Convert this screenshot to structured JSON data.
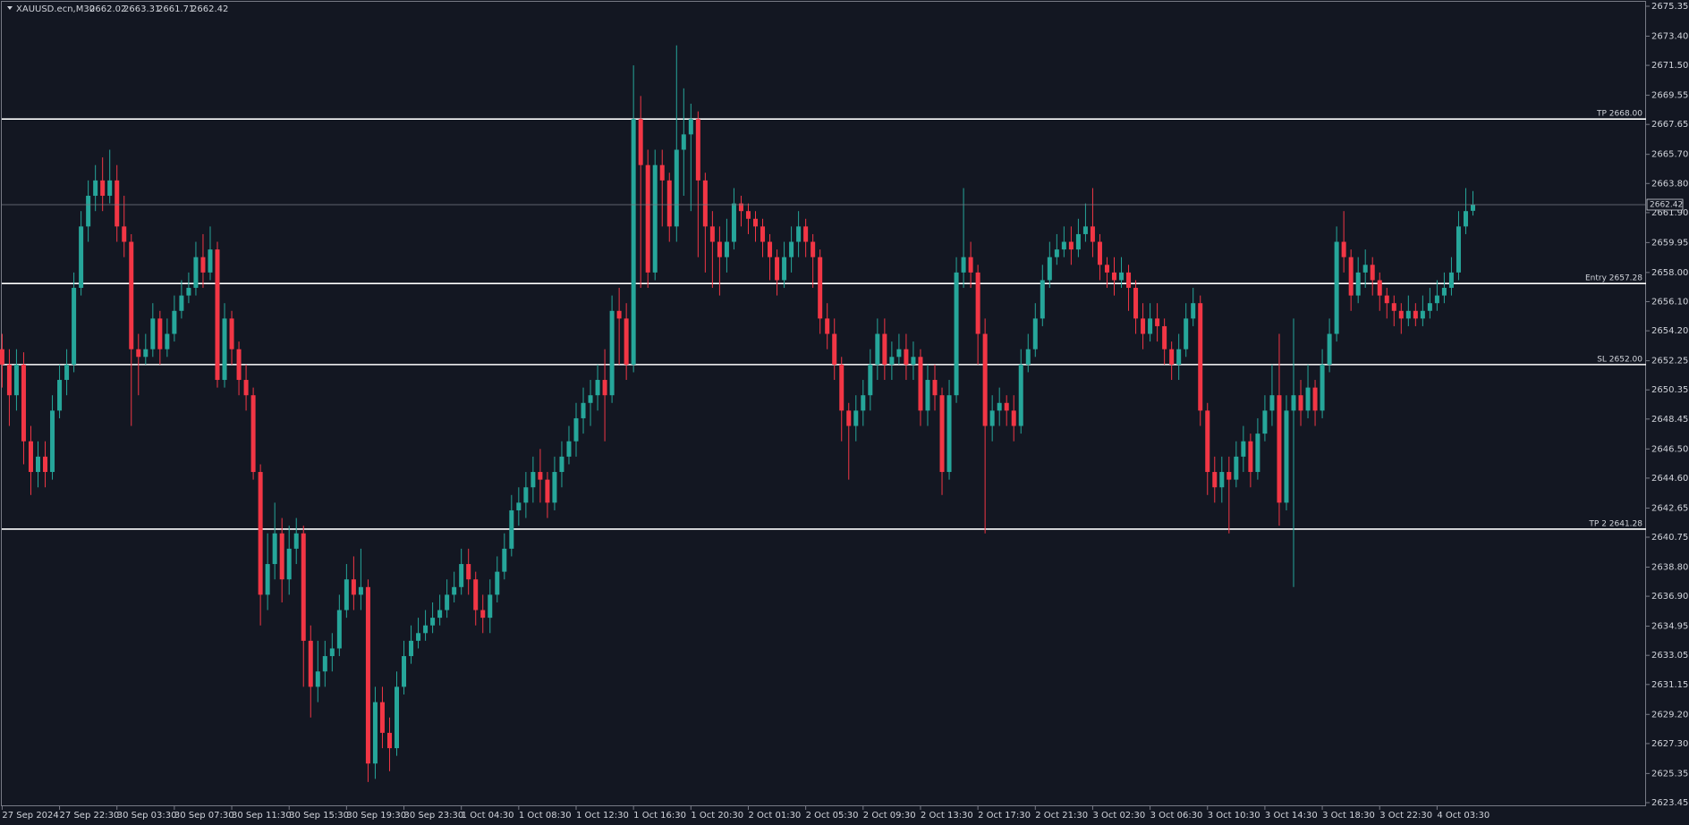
{
  "chart_data": {
    "type": "candlestick",
    "title": "XAUUSD.ecn,M30",
    "bull_color": "#26a69a",
    "bear_color": "#f23645",
    "ylim": [
      2623.45,
      2675.35
    ],
    "yticks": [
      2623.45,
      2625.35,
      {
        "value": 2627.3,
        "label": "2627.30"
      },
      {
        "value": 2629.2,
        "label": "2629.20"
      },
      2631.15,
      2633.05,
      2634.95,
      {
        "value": 2636.9,
        "label": "2636.90"
      },
      {
        "value": 2638.8,
        "label": "2638.80"
      },
      2640.75,
      2642.65,
      {
        "value": 2644.6,
        "label": "2644.60"
      },
      {
        "value": 2646.5,
        "label": "2646.50"
      },
      2648.45,
      2650.35,
      2652.25,
      {
        "value": 2654.2,
        "label": "2654.20"
      },
      {
        "value": 2656.1,
        "label": "2656.10"
      },
      {
        "value": 2658,
        "label": "2658.00"
      },
      2659.95,
      {
        "value": 2661.9,
        "label": "2661.90"
      },
      {
        "value": 2663.8,
        "label": "2663.80"
      },
      {
        "value": 2665.7,
        "label": "2665.70"
      },
      2667.65,
      2669.55,
      {
        "value": 2671.5,
        "label": "2671.50"
      },
      {
        "value": 2673.4,
        "label": "2673.40"
      },
      2675.35
    ],
    "xticks": [
      {
        "value": 0,
        "label": "27 Sep 2024"
      },
      {
        "value": 8,
        "label": "27 Sep 22:30"
      },
      {
        "value": 16,
        "label": "30 Sep 03:30"
      },
      {
        "value": 24,
        "label": "30 Sep 07:30"
      },
      {
        "value": 32,
        "label": "30 Sep 11:30"
      },
      {
        "value": 40,
        "label": "30 Sep 15:30"
      },
      {
        "value": 48,
        "label": "30 Sep 19:30"
      },
      {
        "value": 56,
        "label": "30 Sep 23:30"
      },
      {
        "value": 64,
        "label": "1 Oct 04:30"
      },
      {
        "value": 72,
        "label": "1 Oct 08:30"
      },
      {
        "value": 80,
        "label": "1 Oct 12:30"
      },
      {
        "value": 88,
        "label": "1 Oct 16:30"
      },
      {
        "value": 96,
        "label": "1 Oct 20:30"
      },
      {
        "value": 104,
        "label": "2 Oct 01:30"
      },
      {
        "value": 112,
        "label": "2 Oct 05:30"
      },
      {
        "value": 120,
        "label": "2 Oct 09:30"
      },
      {
        "value": 128,
        "label": "2 Oct 13:30"
      },
      {
        "value": 136,
        "label": "2 Oct 17:30"
      },
      {
        "value": 144,
        "label": "2 Oct 21:30"
      },
      {
        "value": 152,
        "label": "3 Oct 02:30"
      },
      {
        "value": 160,
        "label": "3 Oct 06:30"
      },
      {
        "value": 168,
        "label": "3 Oct 10:30"
      },
      {
        "value": 176,
        "label": "3 Oct 14:30"
      },
      {
        "value": 184,
        "label": "3 Oct 18:30"
      },
      {
        "value": 192,
        "label": "3 Oct 22:30"
      },
      {
        "value": 200,
        "label": "4 Oct 03:30"
      }
    ],
    "levels": [
      {
        "label": "TP 2668.00",
        "value": 2668
      },
      {
        "label": "Entry 2657.28",
        "value": 2657.28
      },
      {
        "label": "SL 2652.00",
        "value": 2652
      },
      {
        "label": "TP 2 2641.28",
        "value": 2641.28
      }
    ],
    "open": [
      2653,
      2652,
      2650,
      2652,
      2647,
      2645,
      2646,
      2645,
      2649,
      2651,
      2652,
      2657,
      2661,
      2663,
      2664,
      2663,
      2664,
      2661,
      2660,
      2653,
      2652.5,
      2653,
      2655,
      2653,
      2654,
      2655.5,
      2656.5,
      2657,
      2659,
      2658,
      2659.5,
      2651,
      2655,
      2653,
      2651,
      2650,
      2645,
      2637,
      2639,
      2641,
      2638,
      2640,
      2641,
      2634,
      2631,
      2632,
      2633,
      2633.5,
      2636,
      2638,
      2637,
      2637.5,
      2626,
      2630,
      2628,
      2627,
      2631,
      2633,
      2634,
      2634.5,
      2635,
      2635.5,
      2636,
      2637,
      2637.5,
      2639,
      2638,
      2636,
      2635.5,
      2637,
      2638.5,
      2640,
      2642.5,
      2643,
      2644,
      2645,
      2644.5,
      2643,
      2645,
      2646,
      2647,
      2648.5,
      2649.5,
      2650,
      2651,
      2650,
      2655.5,
      2655,
      2652,
      2668,
      2665,
      2658,
      2665,
      2664,
      2661,
      2666,
      2667,
      2668,
      2664,
      2661,
      2660,
      2659,
      2660,
      2662.5,
      2662,
      2661.5,
      2661,
      2660,
      2659,
      2657.5,
      2659,
      2660,
      2661,
      2660,
      2659,
      2655,
      2654,
      2652,
      2649,
      2648,
      2649,
      2650,
      2652,
      2654,
      2652,
      2652.5,
      2653,
      2652,
      2652.5,
      2649,
      2651,
      2650,
      2645,
      2650,
      2658,
      2659,
      2658,
      2654,
      2648,
      2649,
      2649.5,
      2649,
      2648,
      2652,
      2653,
      2655,
      2657.5,
      2659,
      2659.5,
      2660,
      2659.5,
      2660.5,
      2661,
      2660,
      2658.5,
      2658,
      2657.5,
      2658,
      2657,
      2655,
      2654,
      2655,
      2654.5,
      2653,
      2652,
      2653,
      2655,
      2656,
      2649,
      2645,
      2644,
      2645,
      2644.5,
      2646,
      2647,
      2645,
      2647.5,
      2649,
      2650,
      2643,
      2649,
      2650,
      2649,
      2650.5,
      2649,
      2652,
      2654,
      2660,
      2659,
      2656.5,
      2658,
      2658.5,
      2657.5,
      2656.5,
      2656,
      2655.5,
      2655,
      2655.5,
      2655,
      2655.5,
      2656,
      2656.5,
      2657,
      2658,
      2661,
      2662.02
    ],
    "high": [
      2654,
      2653,
      2653,
      2652.8,
      2648,
      2647,
      2647,
      2650,
      2652,
      2653,
      2658,
      2662,
      2664,
      2665,
      2665.5,
      2666,
      2665,
      2663,
      2660.5,
      2654,
      2654,
      2656,
      2655.5,
      2655,
      2656.5,
      2657.5,
      2658,
      2660,
      2660.5,
      2661,
      2660,
      2656,
      2655.5,
      2653.5,
      2652,
      2650.5,
      2645.5,
      2641,
      2643,
      2642,
      2641.5,
      2642,
      2641.5,
      2635,
      2634,
      2634,
      2634.5,
      2637,
      2639,
      2639.5,
      2640,
      2638,
      2631,
      2631,
      2629,
      2632,
      2634,
      2635,
      2635.5,
      2636,
      2636.5,
      2637,
      2638,
      2638.5,
      2640,
      2640,
      2638.5,
      2637,
      2638,
      2639.5,
      2641,
      2643.5,
      2644,
      2645,
      2646,
      2646.5,
      2645,
      2646,
      2647,
      2648,
      2649.5,
      2650.5,
      2651,
      2652,
      2653,
      2656.5,
      2657,
      2656,
      2671.5,
      2669.5,
      2666,
      2666,
      2666,
      2664.5,
      2672.8,
      2670,
      2669,
      2668.5,
      2664.5,
      2662,
      2661,
      2661.5,
      2663.5,
      2663,
      2662.5,
      2662,
      2661.5,
      2660.5,
      2659.5,
      2660,
      2661,
      2662,
      2661.5,
      2660.5,
      2659.5,
      2656,
      2655,
      2652.5,
      2649.5,
      2650,
      2651,
      2653,
      2655,
      2655,
      2653.5,
      2654,
      2654,
      2653.5,
      2653,
      2652,
      2652,
      2650.5,
      2651,
      2659,
      2663.5,
      2660,
      2658.5,
      2655,
      2650,
      2650.5,
      2650,
      2650,
      2653,
      2654,
      2656,
      2658.5,
      2660,
      2660.5,
      2661,
      2661,
      2661.5,
      2662.5,
      2663.5,
      2660.5,
      2659,
      2659,
      2659,
      2658.5,
      2657.5,
      2656,
      2656,
      2656,
      2655,
      2653.5,
      2654,
      2656,
      2657,
      2656.5,
      2649.5,
      2646,
      2646,
      2646,
      2647,
      2648,
      2647.5,
      2648.5,
      2650,
      2652,
      2654,
      2650,
      2655,
      2651,
      2652,
      2651,
      2653,
      2655,
      2661,
      2662,
      2659.5,
      2659,
      2659.5,
      2659,
      2658,
      2657,
      2656.5,
      2656,
      2656.5,
      2656,
      2656.5,
      2657,
      2657.5,
      2658,
      2659,
      2662,
      2663.5,
      2663.31
    ],
    "low": [
      2650.5,
      2648,
      2649,
      2645.5,
      2643.5,
      2644,
      2644,
      2644.5,
      2648.5,
      2650,
      2651.5,
      2656.5,
      2660,
      2662,
      2662,
      2662.5,
      2660,
      2659,
      2648,
      2650,
      2652,
      2652.5,
      2652,
      2652.5,
      2653.5,
      2655,
      2656,
      2656.5,
      2657,
      2657.5,
      2650.5,
      2650.5,
      2652,
      2650,
      2649,
      2644.5,
      2635,
      2636,
      2638,
      2636.5,
      2637,
      2639,
      2631,
      2629,
      2630,
      2631,
      2632,
      2633,
      2635.5,
      2636,
      2636,
      2624.8,
      2625,
      2627,
      2625.5,
      2626.5,
      2630.5,
      2632.5,
      2633.5,
      2634,
      2634.5,
      2635,
      2635.5,
      2636.5,
      2637,
      2637,
      2635,
      2634.5,
      2634.5,
      2636.5,
      2638,
      2639.5,
      2641.5,
      2642,
      2643,
      2643,
      2642,
      2642.5,
      2644,
      2645.5,
      2646,
      2647.5,
      2648,
      2649,
      2647,
      2649.5,
      2652,
      2651,
      2651.5,
      2657,
      2657,
      2657.5,
      2661,
      2660,
      2660,
      2663,
      2662,
      2659,
      2658,
      2657,
      2656.5,
      2658,
      2659.5,
      2661,
      2660.5,
      2660,
      2659,
      2657.5,
      2656.5,
      2657,
      2658,
      2659,
      2659,
      2657,
      2654,
      2653,
      2651,
      2647,
      2644.5,
      2647,
      2648,
      2649,
      2651,
      2651,
      2651,
      2652,
      2651,
      2651,
      2648,
      2648,
      2649,
      2643.5,
      2644.5,
      2649.5,
      2657,
      2657,
      2652,
      2641,
      2647,
      2648,
      2648,
      2647,
      2647.5,
      2651.5,
      2652.5,
      2654.5,
      2657,
      2658.5,
      2659,
      2658.5,
      2659,
      2660,
      2659,
      2657.5,
      2657,
      2656.5,
      2657,
      2655.5,
      2654,
      2653,
      2653.5,
      2653.5,
      2652,
      2651,
      2651,
      2652.5,
      2654.5,
      2648,
      2643.5,
      2643,
      2643,
      2641,
      2644,
      2645,
      2644,
      2644.5,
      2647,
      2648,
      2641.5,
      2642.5,
      2637.5,
      2648,
      2648.5,
      2648,
      2648.5,
      2651.5,
      2653.5,
      2658,
      2655.5,
      2656,
      2657,
      2656.5,
      2655.5,
      2655,
      2654.5,
      2654,
      2654.5,
      2654.5,
      2654.5,
      2655,
      2655.5,
      2656,
      2656.5,
      2657.5,
      2660.5,
      2661.71
    ],
    "close": [
      2652,
      2650,
      2652,
      2647,
      2645,
      2646,
      2645,
      2649,
      2651,
      2652,
      2657,
      2661,
      2663,
      2664,
      2663,
      2664,
      2661,
      2660,
      2653,
      2652.5,
      2653,
      2655,
      2653,
      2654,
      2655.5,
      2656.5,
      2657,
      2659,
      2658,
      2659.5,
      2651,
      2655,
      2653,
      2651,
      2650,
      2645,
      2637,
      2639,
      2641,
      2638,
      2640,
      2641,
      2634,
      2631,
      2632,
      2633,
      2633.5,
      2636,
      2638,
      2637,
      2637.5,
      2626,
      2630,
      2628,
      2627,
      2631,
      2633,
      2634,
      2634.5,
      2635,
      2635.5,
      2636,
      2637,
      2637.5,
      2639,
      2638,
      2636,
      2635.5,
      2637,
      2638.5,
      2640,
      2642.5,
      2643,
      2644,
      2645,
      2644.5,
      2643,
      2645,
      2646,
      2647,
      2648.5,
      2649.5,
      2650,
      2651,
      2650,
      2655.5,
      2655,
      2652,
      2668,
      2665,
      2658,
      2665,
      2664,
      2661,
      2666,
      2667,
      2668,
      2664,
      2661,
      2660,
      2659,
      2660,
      2662.5,
      2662,
      2661.5,
      2661,
      2660,
      2659,
      2657.5,
      2659,
      2660,
      2661,
      2660,
      2659,
      2655,
      2654,
      2652,
      2649,
      2648,
      2649,
      2650,
      2652,
      2654,
      2652,
      2652.5,
      2653,
      2652,
      2652.5,
      2649,
      2651,
      2650,
      2645,
      2650,
      2658,
      2659,
      2658,
      2654,
      2648,
      2649,
      2649.5,
      2649,
      2648,
      2652,
      2653,
      2655,
      2657.5,
      2659,
      2659.5,
      2660,
      2659.5,
      2660.5,
      2661,
      2660,
      2658.5,
      2658,
      2657.5,
      2658,
      2657,
      2655,
      2654,
      2655,
      2654.5,
      2653,
      2652,
      2653,
      2655,
      2656,
      2649,
      2645,
      2644,
      2645,
      2644.5,
      2646,
      2647,
      2645,
      2647.5,
      2649,
      2650,
      2643,
      2649,
      2650,
      2649,
      2650.5,
      2649,
      2652,
      2654,
      2660,
      2659,
      2656.5,
      2658,
      2658.5,
      2657.5,
      2656.5,
      2656,
      2655.5,
      2655,
      2655.5,
      2655,
      2655.5,
      2656,
      2656.5,
      2657,
      2658,
      2661,
      2662,
      2662.42
    ]
  }
}
